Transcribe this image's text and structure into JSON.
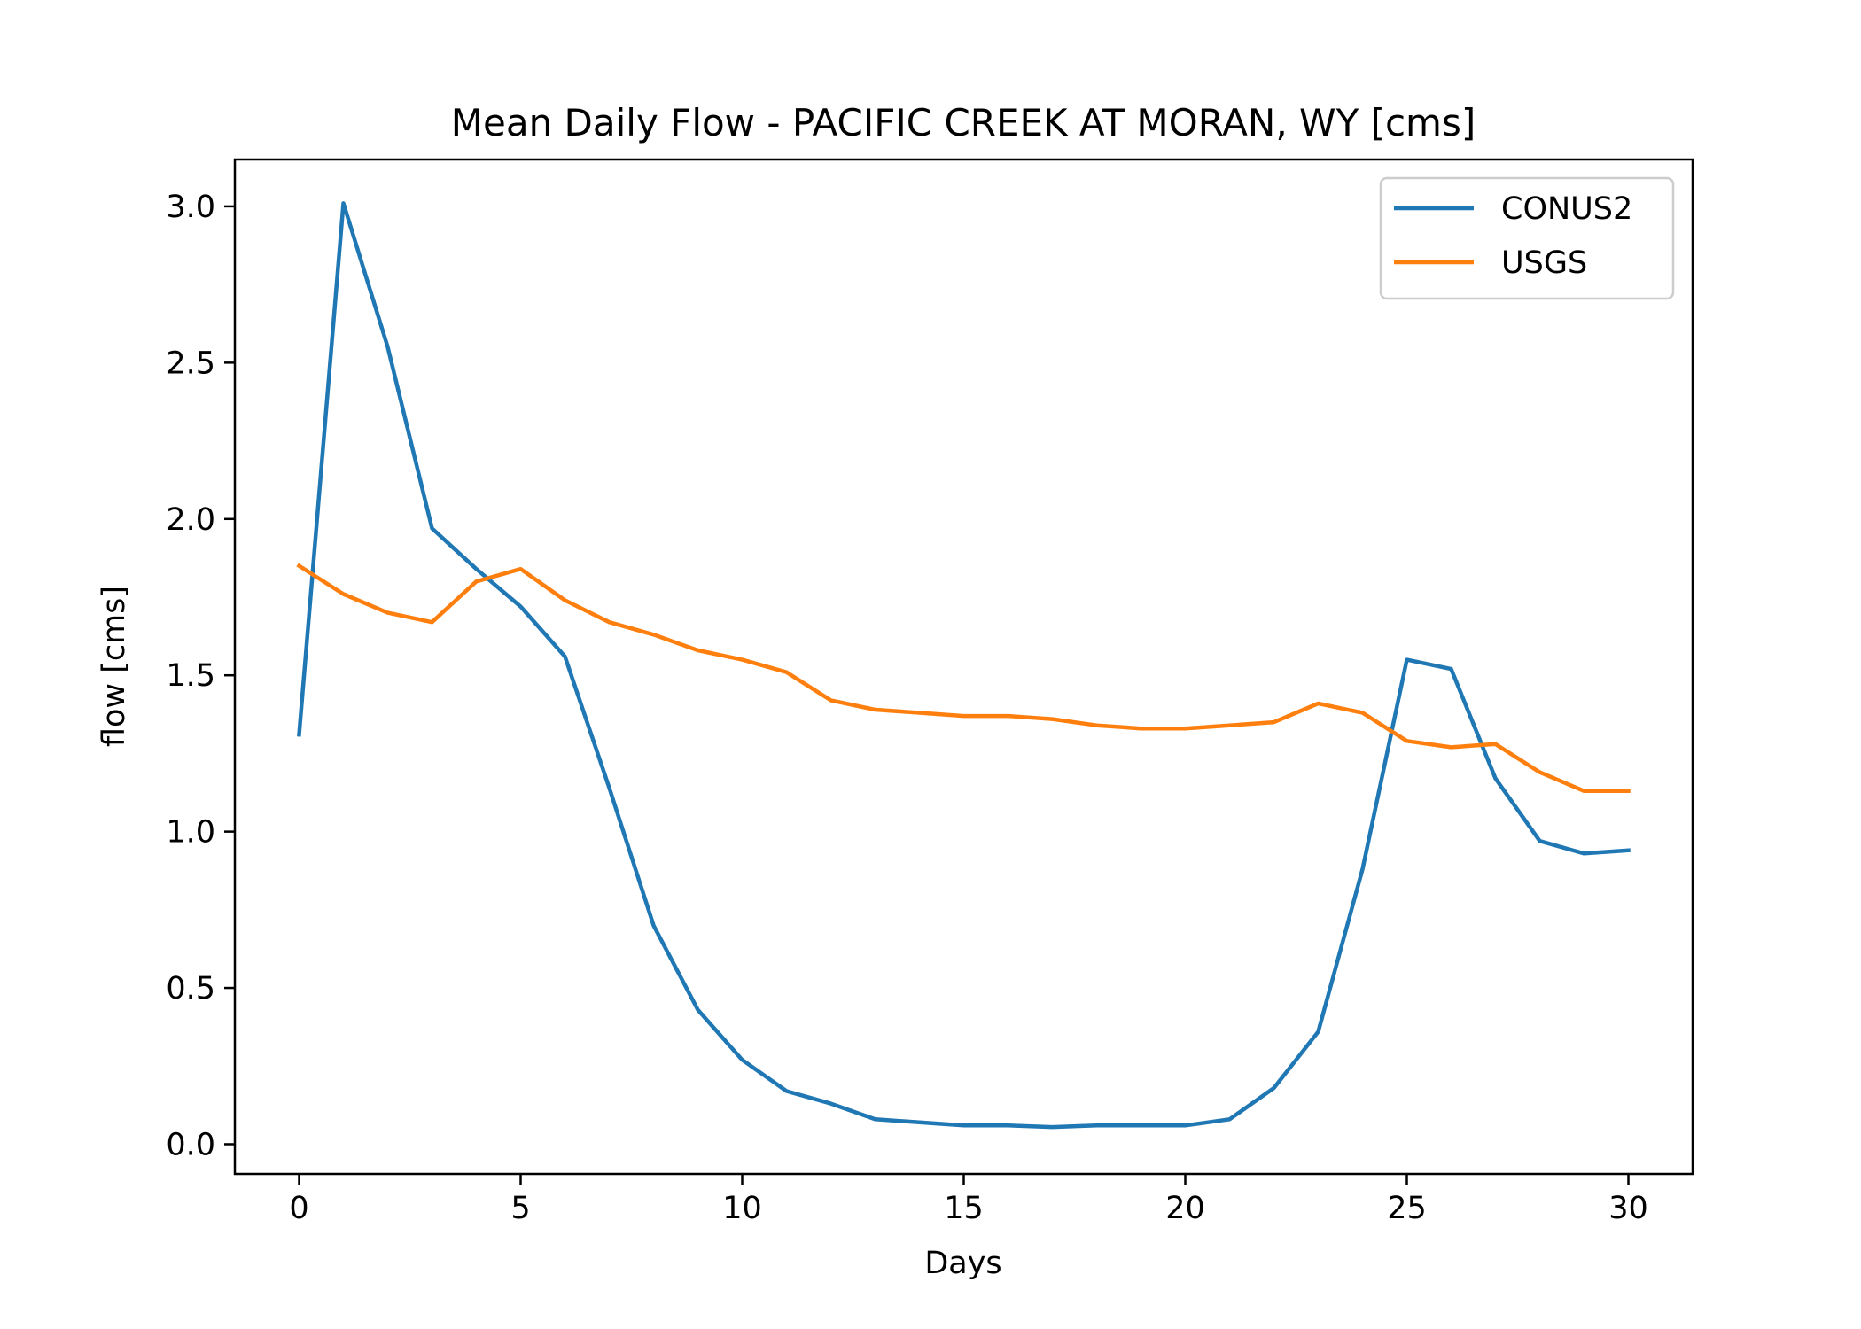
{
  "chart_data": {
    "type": "line",
    "title": "Mean Daily Flow - PACIFIC CREEK AT MORAN, WY [cms]",
    "xlabel": "Days",
    "ylabel": "flow [cms]",
    "xlim": [
      -1.45,
      31.45
    ],
    "ylim": [
      -0.095,
      3.15
    ],
    "xticks": [
      0,
      5,
      10,
      15,
      20,
      25,
      30
    ],
    "xtick_labels": [
      "0",
      "5",
      "10",
      "15",
      "20",
      "25",
      "30"
    ],
    "yticks": [
      0.0,
      0.5,
      1.0,
      1.5,
      2.0,
      2.5,
      3.0
    ],
    "ytick_labels": [
      "0.0",
      "0.5",
      "1.0",
      "1.5",
      "2.0",
      "2.5",
      "3.0"
    ],
    "grid": false,
    "legend_position": "top-right",
    "x": [
      0,
      1,
      2,
      3,
      4,
      5,
      6,
      7,
      8,
      9,
      10,
      11,
      12,
      13,
      14,
      15,
      16,
      17,
      18,
      19,
      20,
      21,
      22,
      23,
      24,
      25,
      26,
      27,
      28,
      29,
      30
    ],
    "series": [
      {
        "name": "CONUS2",
        "color": "#1f77b4",
        "values": [
          1.31,
          3.01,
          2.55,
          1.97,
          1.84,
          1.72,
          1.56,
          1.14,
          0.7,
          0.43,
          0.27,
          0.17,
          0.13,
          0.08,
          0.07,
          0.06,
          0.06,
          0.055,
          0.06,
          0.06,
          0.06,
          0.08,
          0.18,
          0.36,
          0.88,
          1.55,
          1.52,
          1.17,
          0.97,
          0.93,
          0.94
        ]
      },
      {
        "name": "USGS",
        "color": "#ff7f0e",
        "values": [
          1.85,
          1.76,
          1.7,
          1.67,
          1.8,
          1.84,
          1.74,
          1.67,
          1.63,
          1.58,
          1.55,
          1.51,
          1.42,
          1.39,
          1.38,
          1.37,
          1.37,
          1.36,
          1.34,
          1.33,
          1.33,
          1.34,
          1.35,
          1.41,
          1.38,
          1.29,
          1.27,
          1.28,
          1.19,
          1.13,
          1.13
        ]
      }
    ]
  }
}
